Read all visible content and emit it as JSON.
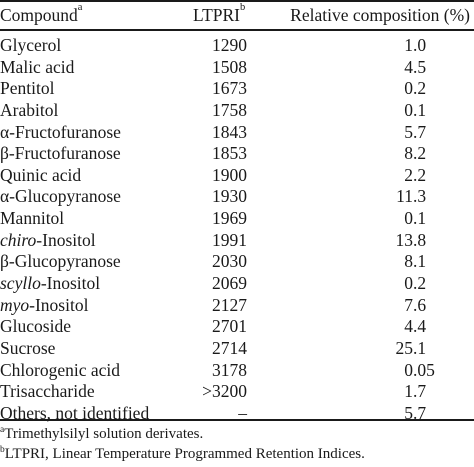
{
  "table": {
    "headers": {
      "compound": "Compound",
      "compound_note": "a",
      "ltpri": "LTPRI",
      "ltpri_note": "b",
      "relative": "Relative composition (%)"
    },
    "rows": [
      {
        "prefix": "",
        "name": "Glycerol",
        "ltpri": "1290",
        "rel": "1.0"
      },
      {
        "prefix": "",
        "name": "Malic acid",
        "ltpri": "1508",
        "rel": "4.5"
      },
      {
        "prefix": "",
        "name": "Pentitol",
        "ltpri": "1673",
        "rel": "0.2"
      },
      {
        "prefix": "",
        "name": "Arabitol",
        "ltpri": "1758",
        "rel": "0.1"
      },
      {
        "prefix": "",
        "name": "α-Fructofuranose",
        "ltpri": "1843",
        "rel": "5.7"
      },
      {
        "prefix": "",
        "name": "β-Fructofuranose",
        "ltpri": "1853",
        "rel": "8.2"
      },
      {
        "prefix": "",
        "name": "Quinic acid",
        "ltpri": "1900",
        "rel": "2.2"
      },
      {
        "prefix": "",
        "name": "α-Glucopyranose",
        "ltpri": "1930",
        "rel": "11.3"
      },
      {
        "prefix": "",
        "name": "Mannitol",
        "ltpri": "1969",
        "rel": "0.1"
      },
      {
        "prefix": "chiro",
        "name": "-Inositol",
        "ltpri": "1991",
        "rel": "13.8"
      },
      {
        "prefix": "",
        "name": "β-Glucopyranose",
        "ltpri": "2030",
        "rel": "8.1"
      },
      {
        "prefix": "scyllo",
        "name": "-Inositol",
        "ltpri": "2069",
        "rel": "0.2"
      },
      {
        "prefix": "myo",
        "name": "-Inositol",
        "ltpri": "2127",
        "rel": "7.6"
      },
      {
        "prefix": "",
        "name": "Glucoside",
        "ltpri": "2701",
        "rel": "4.4"
      },
      {
        "prefix": "",
        "name": "Sucrose",
        "ltpri": "2714",
        "rel": "25.1"
      },
      {
        "prefix": "",
        "name": "Chlorogenic acid",
        "ltpri": "3178",
        "rel": "0.05"
      },
      {
        "prefix": "",
        "name": "Trisaccharide",
        "ltpri": ">3200",
        "rel": "1.7"
      },
      {
        "prefix": "",
        "name": "Others, not identified",
        "ltpri": "–",
        "rel": "5.7"
      }
    ]
  },
  "footnotes": [
    {
      "mark": "a",
      "text": "Trimethylsilyl solution derivates."
    },
    {
      "mark": "b",
      "text": "LTPRI, Linear Temperature Programmed Retention Indices."
    }
  ]
}
